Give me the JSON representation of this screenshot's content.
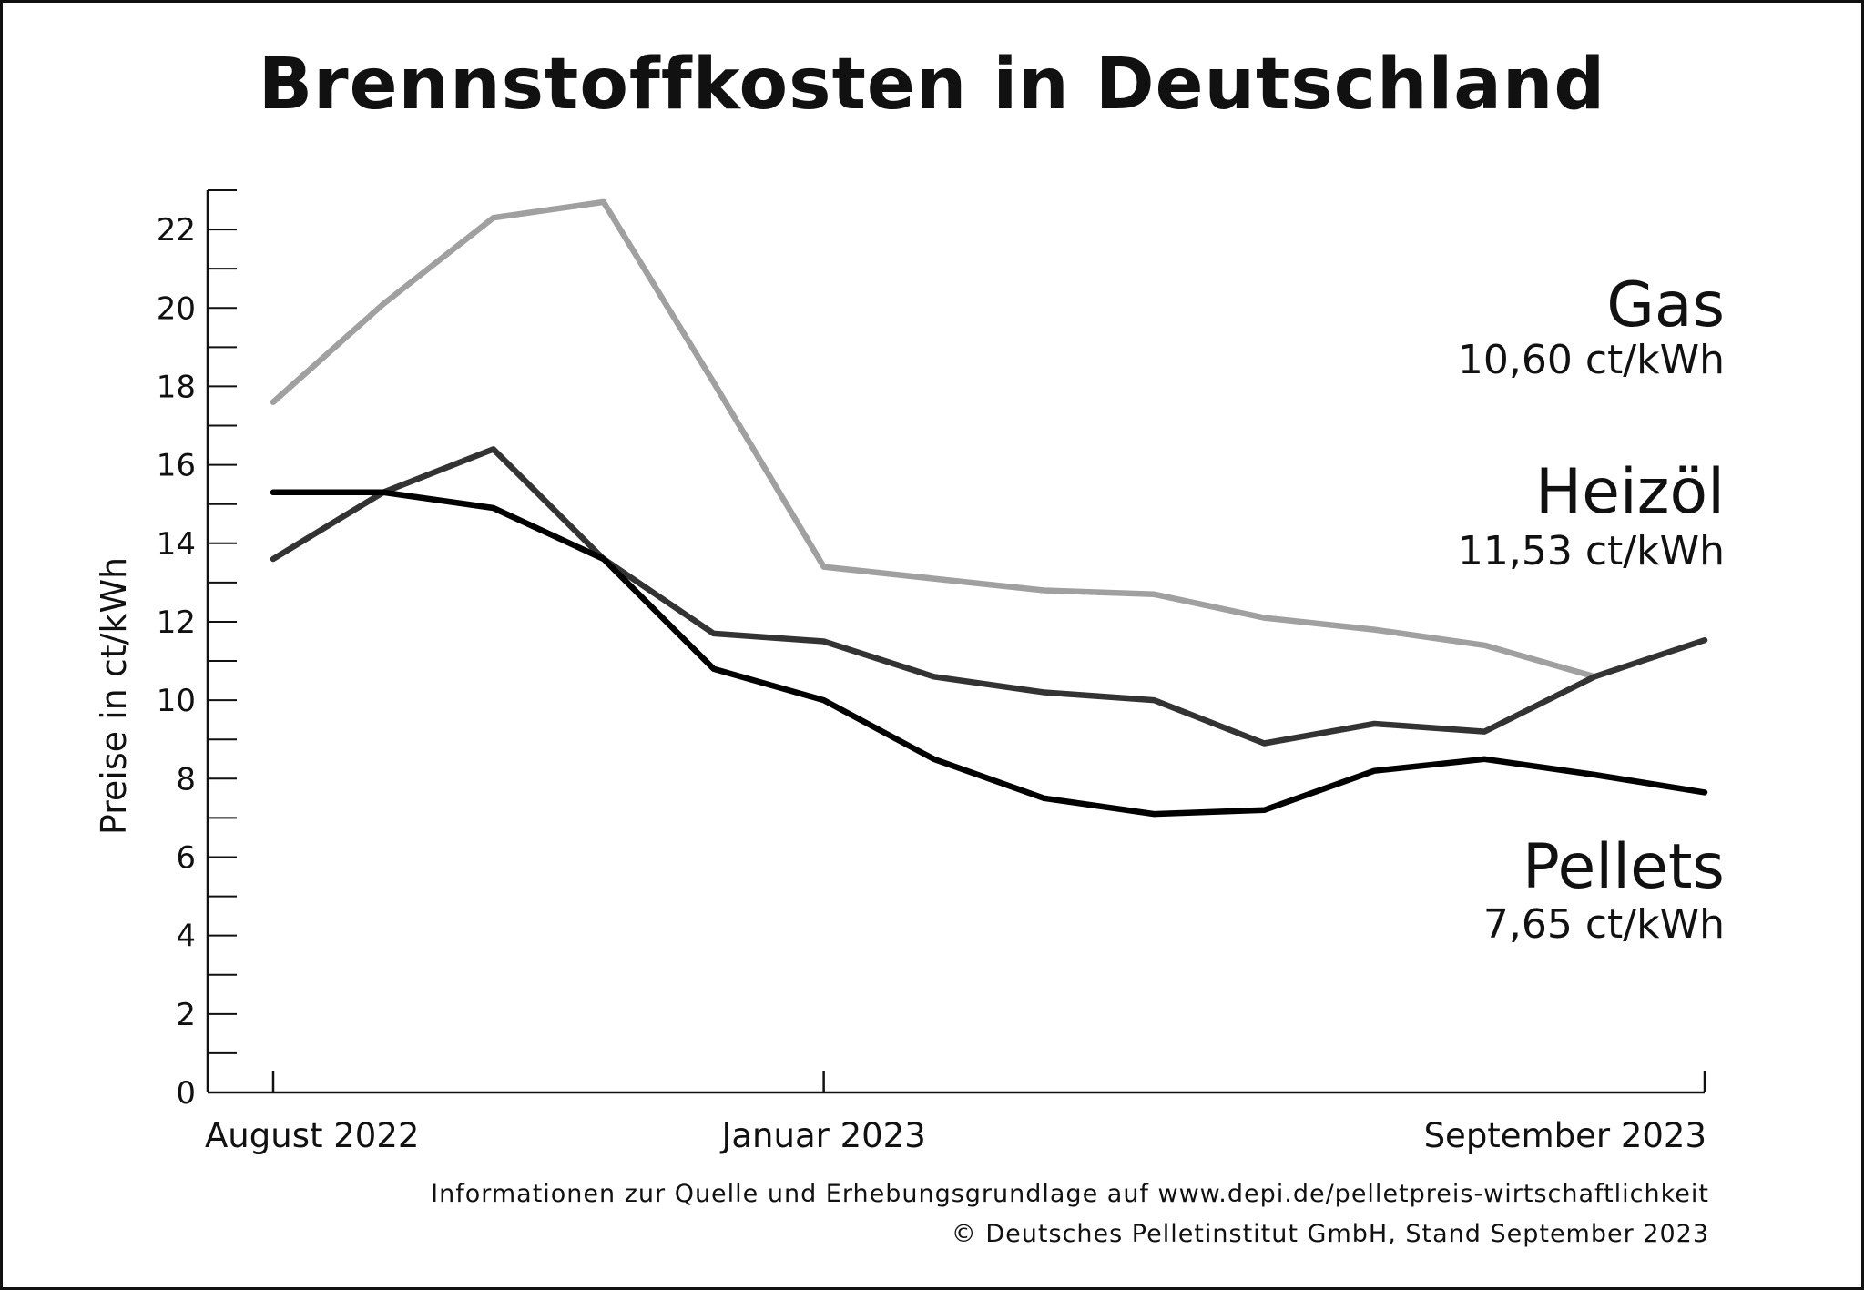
{
  "title": "Brennstoffkosten in Deutschland",
  "footer": {
    "line1": "Informationen zur Quelle und Erhebungsgrundlage auf www.depi.de/pelletpreis-wirtschaftlichkeit",
    "line2": "© Deutsches Pelletinstitut GmbH, Stand September 2023"
  },
  "chart_data": {
    "type": "line",
    "title": "Brennstoffkosten in Deutschland",
    "xlabel": "",
    "ylabel": "Preise in ct/kWh",
    "ylim": [
      0,
      23
    ],
    "yticks": [
      0,
      2,
      4,
      6,
      8,
      10,
      12,
      14,
      16,
      18,
      20,
      22
    ],
    "x_tick_labels": [
      {
        "label": "August 2022",
        "index": 0
      },
      {
        "label": "Januar 2023",
        "index": 5
      },
      {
        "label": "September 2023",
        "index": 13
      }
    ],
    "grid": false,
    "legend": "direct labels right",
    "series": [
      {
        "name": "Gas",
        "value_label": "10,60 ct/kWh",
        "color": "#a0a0a0",
        "values": [
          17.6,
          20.1,
          22.3,
          22.7,
          18.1,
          13.4,
          13.1,
          12.8,
          12.7,
          12.1,
          11.8,
          11.4,
          10.6,
          null
        ]
      },
      {
        "name": "Heizöl",
        "value_label": "11,53 ct/kWh",
        "color": "#333333",
        "values": [
          13.6,
          15.3,
          16.4,
          13.6,
          11.7,
          11.5,
          10.6,
          10.2,
          10.0,
          8.9,
          9.4,
          9.2,
          10.6,
          11.53
        ]
      },
      {
        "name": "Pellets",
        "value_label": "7,65 ct/kWh",
        "color": "#000000",
        "values": [
          15.3,
          15.3,
          14.9,
          13.6,
          10.8,
          10.0,
          8.5,
          7.5,
          7.1,
          7.2,
          8.2,
          8.5,
          8.1,
          7.65
        ]
      }
    ]
  }
}
